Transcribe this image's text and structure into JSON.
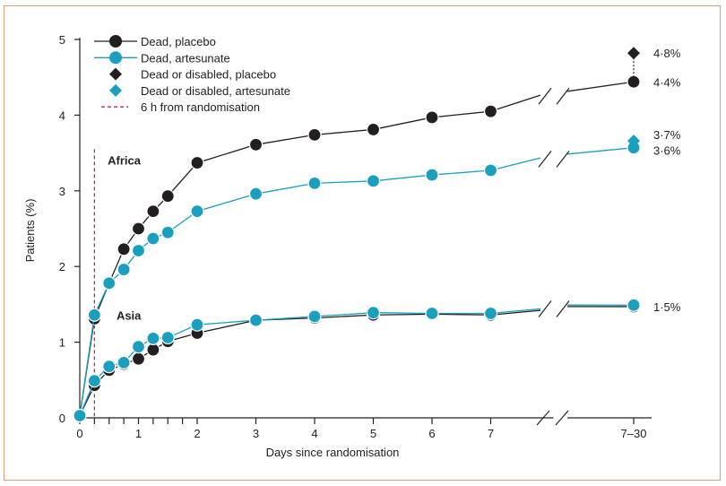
{
  "chart_data": {
    "type": "line",
    "xlabel": "Days since randomisation",
    "ylabel": "Patients (%)",
    "ylim": [
      0,
      5
    ],
    "y_ticks": [
      "0",
      "1",
      "2",
      "3",
      "4",
      "5"
    ],
    "x_major_ticks": [
      {
        "x": 0,
        "label": "0"
      },
      {
        "x": 1,
        "label": "1"
      },
      {
        "x": 2,
        "label": "2"
      },
      {
        "x": 3,
        "label": "3"
      },
      {
        "x": 4,
        "label": "4"
      },
      {
        "x": 5,
        "label": "5"
      },
      {
        "x": 6,
        "label": "6"
      },
      {
        "x": 7,
        "label": "7"
      },
      {
        "x": 9.5,
        "label": "7–30"
      }
    ],
    "x_minor_ticks": [
      0.25,
      0.5,
      0.75,
      1.25,
      1.5,
      1.75
    ],
    "legend": {
      "placement": "top-left",
      "entries": [
        {
          "label": "Dead, placebo",
          "marker": "circle-line",
          "color": "#231f20"
        },
        {
          "label": "Dead, artesunate",
          "marker": "circle-line",
          "color": "#1a9fbf"
        },
        {
          "label": "Dead or disabled, placebo",
          "marker": "diamond",
          "color": "#231f20"
        },
        {
          "label": "Dead or disabled, artesunate",
          "marker": "diamond",
          "color": "#1a9fbf"
        },
        {
          "label": "6 h from randomisation",
          "marker": "dashed-line",
          "color": "#c0264e"
        }
      ]
    },
    "reference_line": {
      "x": 0.25,
      "label": "6 h from randomisation",
      "color": "#c0264e"
    },
    "region_labels": [
      {
        "text": "Africa",
        "x": 0.75,
        "y": 3.35
      },
      {
        "text": "Asia",
        "x": 0.9,
        "y": 1.3
      }
    ],
    "series": [
      {
        "name": "Dead, placebo",
        "group": "Africa",
        "color": "#231f20",
        "x": [
          0,
          0.25,
          0.5,
          0.75,
          1,
          1.25,
          1.5,
          2,
          3,
          4,
          5,
          6,
          7
        ],
        "y": [
          0.03,
          1.31,
          1.78,
          2.23,
          2.5,
          2.73,
          2.93,
          3.37,
          3.61,
          3.74,
          3.81,
          3.97,
          4.05
        ],
        "end": {
          "x": 9.5,
          "y": 4.44,
          "label": "4·4%"
        }
      },
      {
        "name": "Dead, artesunate",
        "group": "Africa",
        "color": "#1a9fbf",
        "x": [
          0,
          0.25,
          0.5,
          0.75,
          1,
          1.25,
          1.5,
          2,
          3,
          4,
          5,
          6,
          7
        ],
        "y": [
          0.03,
          1.36,
          1.78,
          1.96,
          2.21,
          2.37,
          2.45,
          2.73,
          2.96,
          3.1,
          3.13,
          3.21,
          3.27
        ],
        "end": {
          "x": 9.5,
          "y": 3.57,
          "label": "3·6%"
        }
      },
      {
        "name": "Dead, placebo",
        "group": "Asia",
        "color": "#231f20",
        "x": [
          0,
          0.25,
          0.5,
          0.75,
          1,
          1.25,
          1.5,
          2,
          3,
          4,
          5,
          6,
          7
        ],
        "y": [
          0.03,
          0.43,
          0.63,
          0.71,
          0.78,
          0.9,
          1.01,
          1.12,
          1.29,
          1.32,
          1.36,
          1.37,
          1.36
        ],
        "end": {
          "x": 9.5,
          "y": 1.47,
          "label": "1·5%"
        }
      },
      {
        "name": "Dead, artesunate",
        "group": "Asia",
        "color": "#1a9fbf",
        "x": [
          0,
          0.25,
          0.5,
          0.75,
          1,
          1.25,
          1.5,
          2,
          3,
          4,
          5,
          6,
          7
        ],
        "y": [
          0.03,
          0.49,
          0.68,
          0.73,
          0.94,
          1.05,
          1.06,
          1.23,
          1.29,
          1.34,
          1.39,
          1.38,
          1.38
        ],
        "end": {
          "x": 9.5,
          "y": 1.49,
          "label": ""
        }
      }
    ],
    "dead_or_disabled": [
      {
        "name": "Dead or disabled, placebo",
        "group": "Africa",
        "color": "#231f20",
        "x": 9.5,
        "y": 4.82,
        "label": "4·8%"
      },
      {
        "name": "Dead or disabled, artesunate",
        "group": "Africa",
        "color": "#1a9fbf",
        "x": 9.5,
        "y": 3.66,
        "label": "3·7%"
      }
    ]
  }
}
